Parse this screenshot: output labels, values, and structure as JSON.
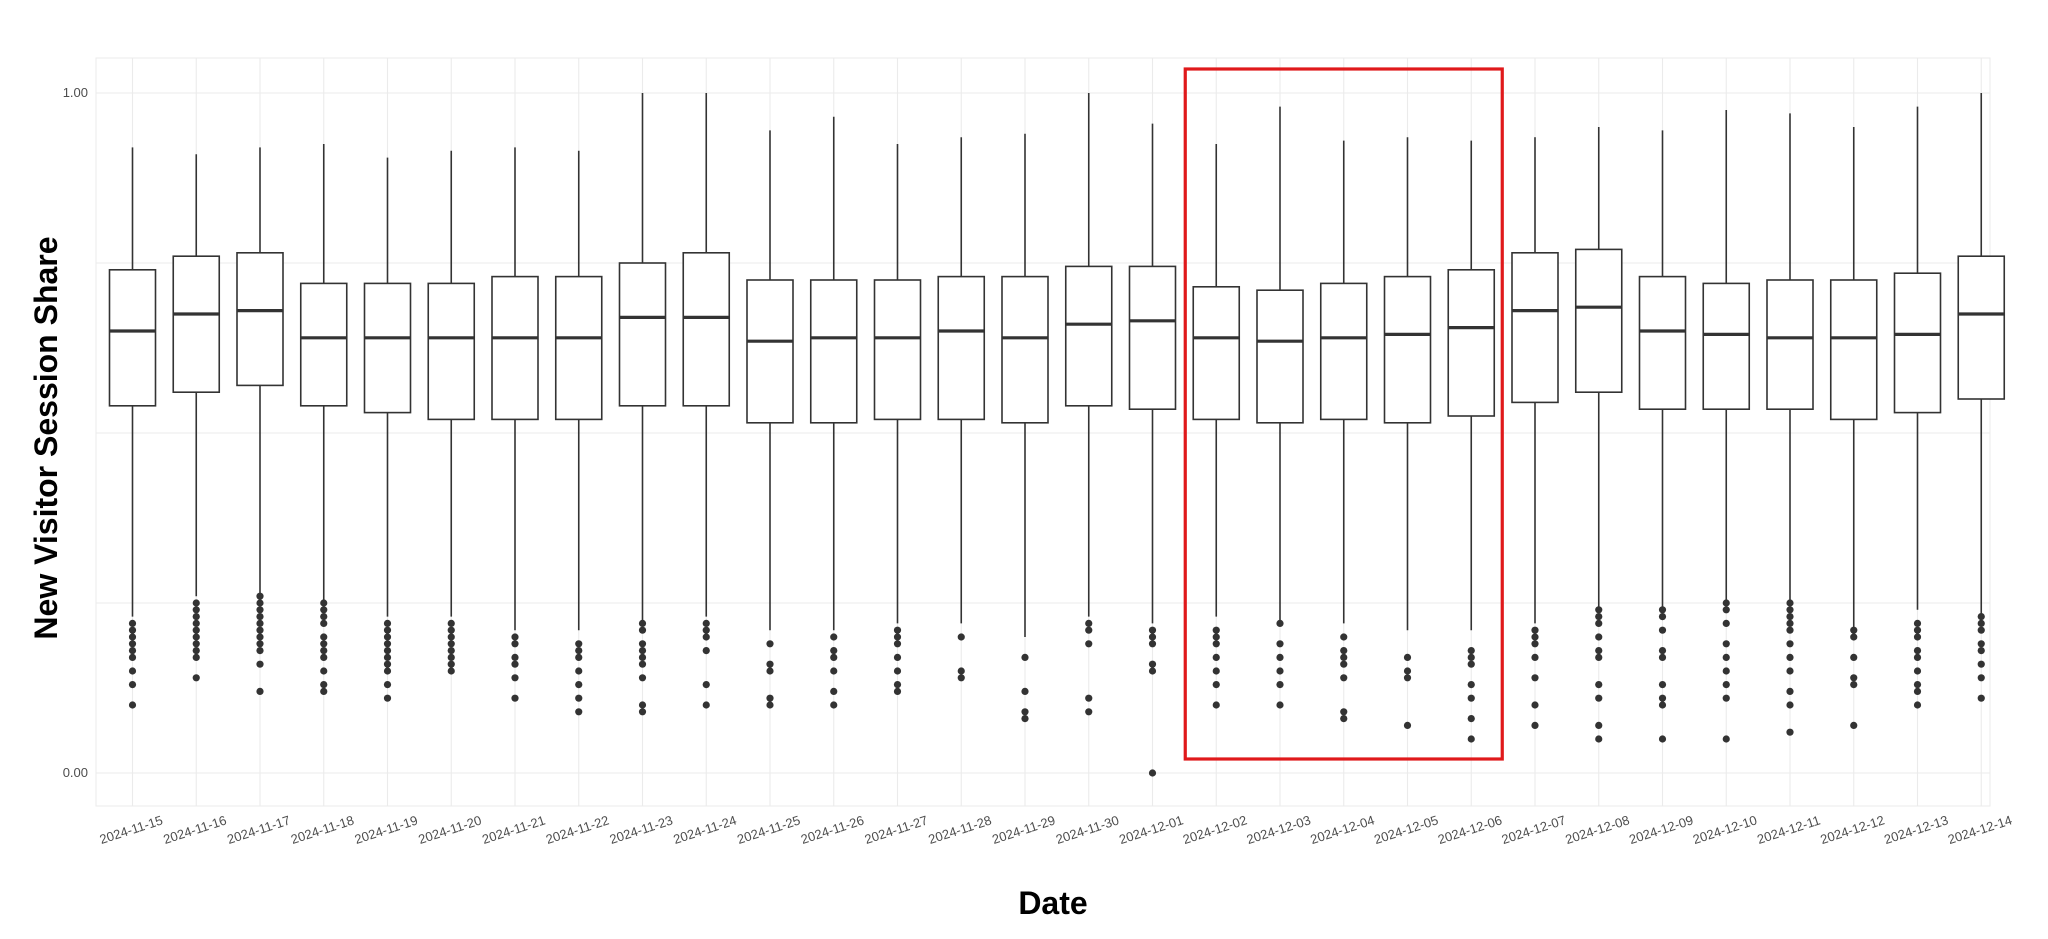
{
  "chart_data": {
    "type": "boxplot",
    "xlabel": "Date",
    "ylabel": "New Visitor Session Share",
    "ylim": [
      0.0,
      1.0
    ],
    "y_ticks": [
      "0.00",
      "1.00"
    ],
    "grid": true,
    "categories": [
      "2024-11-15",
      "2024-11-16",
      "2024-11-17",
      "2024-11-18",
      "2024-11-19",
      "2024-11-20",
      "2024-11-21",
      "2024-11-22",
      "2024-11-23",
      "2024-11-24",
      "2024-11-25",
      "2024-11-26",
      "2024-11-27",
      "2024-11-28",
      "2024-11-29",
      "2024-11-30",
      "2024-12-01",
      "2024-12-02",
      "2024-12-03",
      "2024-12-04",
      "2024-12-05",
      "2024-12-06",
      "2024-12-07",
      "2024-12-08",
      "2024-12-09",
      "2024-12-10",
      "2024-12-11",
      "2024-12-12",
      "2024-12-13",
      "2024-12-14"
    ],
    "boxes": [
      {
        "whisker_low": 0.23,
        "q1": 0.54,
        "median": 0.65,
        "q3": 0.74,
        "whisker_high": 0.92,
        "outliers": [
          0.1,
          0.13,
          0.15,
          0.17,
          0.18,
          0.19,
          0.2,
          0.21,
          0.22
        ]
      },
      {
        "whisker_low": 0.26,
        "q1": 0.56,
        "median": 0.675,
        "q3": 0.76,
        "whisker_high": 0.91,
        "outliers": [
          0.14,
          0.17,
          0.18,
          0.19,
          0.2,
          0.21,
          0.22,
          0.23,
          0.24,
          0.25
        ]
      },
      {
        "whisker_low": 0.26,
        "q1": 0.57,
        "median": 0.68,
        "q3": 0.765,
        "whisker_high": 0.92,
        "outliers": [
          0.12,
          0.16,
          0.18,
          0.19,
          0.2,
          0.21,
          0.22,
          0.23,
          0.24,
          0.25,
          0.26
        ]
      },
      {
        "whisker_low": 0.25,
        "q1": 0.54,
        "median": 0.64,
        "q3": 0.72,
        "whisker_high": 0.925,
        "outliers": [
          0.12,
          0.13,
          0.15,
          0.17,
          0.18,
          0.19,
          0.2,
          0.22,
          0.23,
          0.24,
          0.25
        ]
      },
      {
        "whisker_low": 0.23,
        "q1": 0.53,
        "median": 0.64,
        "q3": 0.72,
        "whisker_high": 0.905,
        "outliers": [
          0.11,
          0.13,
          0.15,
          0.16,
          0.17,
          0.18,
          0.19,
          0.2,
          0.21,
          0.22
        ]
      },
      {
        "whisker_low": 0.23,
        "q1": 0.52,
        "median": 0.64,
        "q3": 0.72,
        "whisker_high": 0.915,
        "outliers": [
          0.15,
          0.16,
          0.17,
          0.18,
          0.19,
          0.2,
          0.21,
          0.22
        ]
      },
      {
        "whisker_low": 0.21,
        "q1": 0.52,
        "median": 0.64,
        "q3": 0.73,
        "whisker_high": 0.92,
        "outliers": [
          0.11,
          0.14,
          0.16,
          0.17,
          0.19,
          0.2
        ]
      },
      {
        "whisker_low": 0.21,
        "q1": 0.52,
        "median": 0.64,
        "q3": 0.73,
        "whisker_high": 0.915,
        "outliers": [
          0.09,
          0.11,
          0.13,
          0.15,
          0.17,
          0.18,
          0.19
        ]
      },
      {
        "whisker_low": 0.22,
        "q1": 0.54,
        "median": 0.67,
        "q3": 0.75,
        "whisker_high": 1.0,
        "outliers": [
          0.09,
          0.1,
          0.14,
          0.16,
          0.17,
          0.18,
          0.19,
          0.21,
          0.22
        ]
      },
      {
        "whisker_low": 0.23,
        "q1": 0.54,
        "median": 0.67,
        "q3": 0.765,
        "whisker_high": 1.0,
        "outliers": [
          0.1,
          0.13,
          0.18,
          0.2,
          0.21,
          0.22
        ]
      },
      {
        "whisker_low": 0.21,
        "q1": 0.515,
        "median": 0.635,
        "q3": 0.725,
        "whisker_high": 0.945,
        "outliers": [
          0.1,
          0.11,
          0.15,
          0.16,
          0.19
        ]
      },
      {
        "whisker_low": 0.21,
        "q1": 0.515,
        "median": 0.64,
        "q3": 0.725,
        "whisker_high": 0.965,
        "outliers": [
          0.1,
          0.12,
          0.15,
          0.17,
          0.18,
          0.2
        ]
      },
      {
        "whisker_low": 0.22,
        "q1": 0.52,
        "median": 0.64,
        "q3": 0.725,
        "whisker_high": 0.925,
        "outliers": [
          0.12,
          0.13,
          0.15,
          0.17,
          0.19,
          0.2,
          0.21
        ]
      },
      {
        "whisker_low": 0.22,
        "q1": 0.52,
        "median": 0.65,
        "q3": 0.73,
        "whisker_high": 0.935,
        "outliers": [
          0.14,
          0.15,
          0.2
        ]
      },
      {
        "whisker_low": 0.2,
        "q1": 0.515,
        "median": 0.64,
        "q3": 0.73,
        "whisker_high": 0.94,
        "outliers": [
          0.08,
          0.09,
          0.12,
          0.17
        ]
      },
      {
        "whisker_low": 0.23,
        "q1": 0.54,
        "median": 0.66,
        "q3": 0.745,
        "whisker_high": 1.0,
        "outliers": [
          0.09,
          0.11,
          0.19,
          0.21,
          0.22
        ]
      },
      {
        "whisker_low": 0.22,
        "q1": 0.535,
        "median": 0.665,
        "q3": 0.745,
        "whisker_high": 0.955,
        "outliers": [
          0.0,
          0.15,
          0.16,
          0.19,
          0.2,
          0.21
        ]
      },
      {
        "whisker_low": 0.23,
        "q1": 0.52,
        "median": 0.64,
        "q3": 0.715,
        "whisker_high": 0.925,
        "outliers": [
          0.1,
          0.13,
          0.15,
          0.17,
          0.19,
          0.2,
          0.21
        ]
      },
      {
        "whisker_low": 0.22,
        "q1": 0.515,
        "median": 0.635,
        "q3": 0.71,
        "whisker_high": 0.98,
        "outliers": [
          0.1,
          0.13,
          0.15,
          0.17,
          0.19,
          0.22
        ]
      },
      {
        "whisker_low": 0.22,
        "q1": 0.52,
        "median": 0.64,
        "q3": 0.72,
        "whisker_high": 0.93,
        "outliers": [
          0.08,
          0.09,
          0.14,
          0.16,
          0.17,
          0.18,
          0.2
        ]
      },
      {
        "whisker_low": 0.21,
        "q1": 0.515,
        "median": 0.645,
        "q3": 0.73,
        "whisker_high": 0.935,
        "outliers": [
          0.07,
          0.14,
          0.15,
          0.17
        ]
      },
      {
        "whisker_low": 0.21,
        "q1": 0.525,
        "median": 0.655,
        "q3": 0.74,
        "whisker_high": 0.93,
        "outliers": [
          0.05,
          0.08,
          0.11,
          0.13,
          0.16,
          0.17,
          0.18
        ]
      },
      {
        "whisker_low": 0.22,
        "q1": 0.545,
        "median": 0.68,
        "q3": 0.765,
        "whisker_high": 0.935,
        "outliers": [
          0.07,
          0.1,
          0.14,
          0.17,
          0.19,
          0.2,
          0.21
        ]
      },
      {
        "whisker_low": 0.24,
        "q1": 0.56,
        "median": 0.685,
        "q3": 0.77,
        "whisker_high": 0.95,
        "outliers": [
          0.05,
          0.07,
          0.11,
          0.13,
          0.17,
          0.18,
          0.2,
          0.22,
          0.23,
          0.24
        ]
      },
      {
        "whisker_low": 0.24,
        "q1": 0.535,
        "median": 0.65,
        "q3": 0.73,
        "whisker_high": 0.945,
        "outliers": [
          0.05,
          0.1,
          0.11,
          0.13,
          0.17,
          0.18,
          0.21,
          0.23,
          0.24
        ]
      },
      {
        "whisker_low": 0.25,
        "q1": 0.535,
        "median": 0.645,
        "q3": 0.72,
        "whisker_high": 0.975,
        "outliers": [
          0.05,
          0.11,
          0.13,
          0.15,
          0.17,
          0.19,
          0.22,
          0.24,
          0.25
        ]
      },
      {
        "whisker_low": 0.25,
        "q1": 0.535,
        "median": 0.64,
        "q3": 0.725,
        "whisker_high": 0.97,
        "outliers": [
          0.06,
          0.1,
          0.12,
          0.15,
          0.17,
          0.19,
          0.21,
          0.22,
          0.23,
          0.24,
          0.25
        ]
      },
      {
        "whisker_low": 0.21,
        "q1": 0.52,
        "median": 0.64,
        "q3": 0.725,
        "whisker_high": 0.95,
        "outliers": [
          0.07,
          0.13,
          0.14,
          0.17,
          0.2,
          0.21
        ]
      },
      {
        "whisker_low": 0.24,
        "q1": 0.53,
        "median": 0.645,
        "q3": 0.735,
        "whisker_high": 0.98,
        "outliers": [
          0.1,
          0.12,
          0.13,
          0.15,
          0.17,
          0.18,
          0.2,
          0.21,
          0.22
        ]
      },
      {
        "whisker_low": 0.23,
        "q1": 0.55,
        "median": 0.675,
        "q3": 0.76,
        "whisker_high": 1.0,
        "outliers": [
          0.11,
          0.14,
          0.16,
          0.18,
          0.19,
          0.21,
          0.22,
          0.23
        ]
      }
    ],
    "highlight": {
      "from": "2024-12-02",
      "to": "2024-12-06",
      "color": "#e0191b"
    },
    "colors": {
      "box_stroke": "#333333",
      "box_fill": "#ffffff",
      "grid": "#ebebeb",
      "point": "#333333"
    }
  }
}
